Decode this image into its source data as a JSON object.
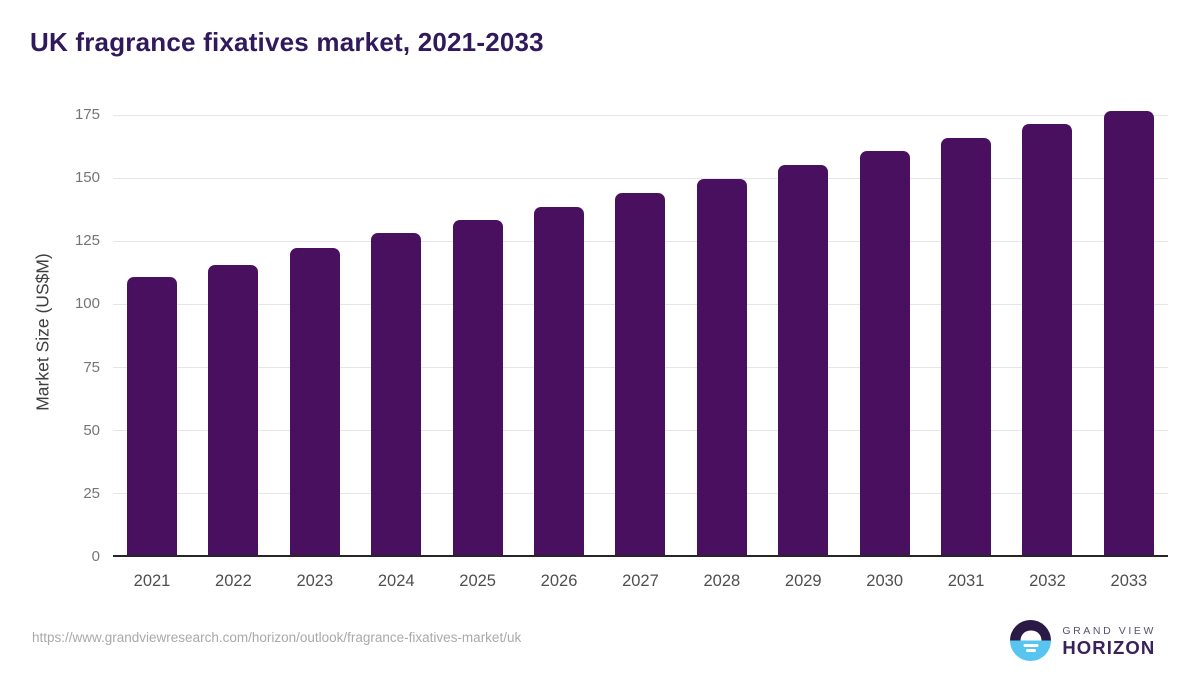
{
  "title": "UK fragrance fixatives market, 2021-2033",
  "chart_data": {
    "type": "bar",
    "title": "UK fragrance fixatives market, 2021-2033",
    "categories": [
      "2021",
      "2022",
      "2023",
      "2024",
      "2025",
      "2026",
      "2027",
      "2028",
      "2029",
      "2030",
      "2031",
      "2032",
      "2033"
    ],
    "values": [
      110,
      115,
      121.5,
      127.5,
      132.5,
      138,
      143.5,
      149,
      154.5,
      160,
      165,
      170.5,
      176
    ],
    "xlabel": "",
    "ylabel": "Market Size (US$M)",
    "y_ticks": [
      0,
      25,
      50,
      75,
      100,
      125,
      150,
      175
    ],
    "ylim": [
      0,
      179
    ],
    "grid": true,
    "legend_position": "none",
    "bar_color": "#4a1060",
    "gridline_color": "#e6e6e6",
    "axis_line_color": "#262626"
  },
  "footer": {
    "source_url": "https://www.grandviewresearch.com/horizon/outlook/fragrance-fixatives-market/uk",
    "logo": {
      "name": "grand-view-horizon-logo",
      "line1": "GRAND VIEW",
      "line2": "HORIZON",
      "circle_top_color": "#2b1946",
      "circle_bottom_color": "#58c4f0"
    }
  }
}
